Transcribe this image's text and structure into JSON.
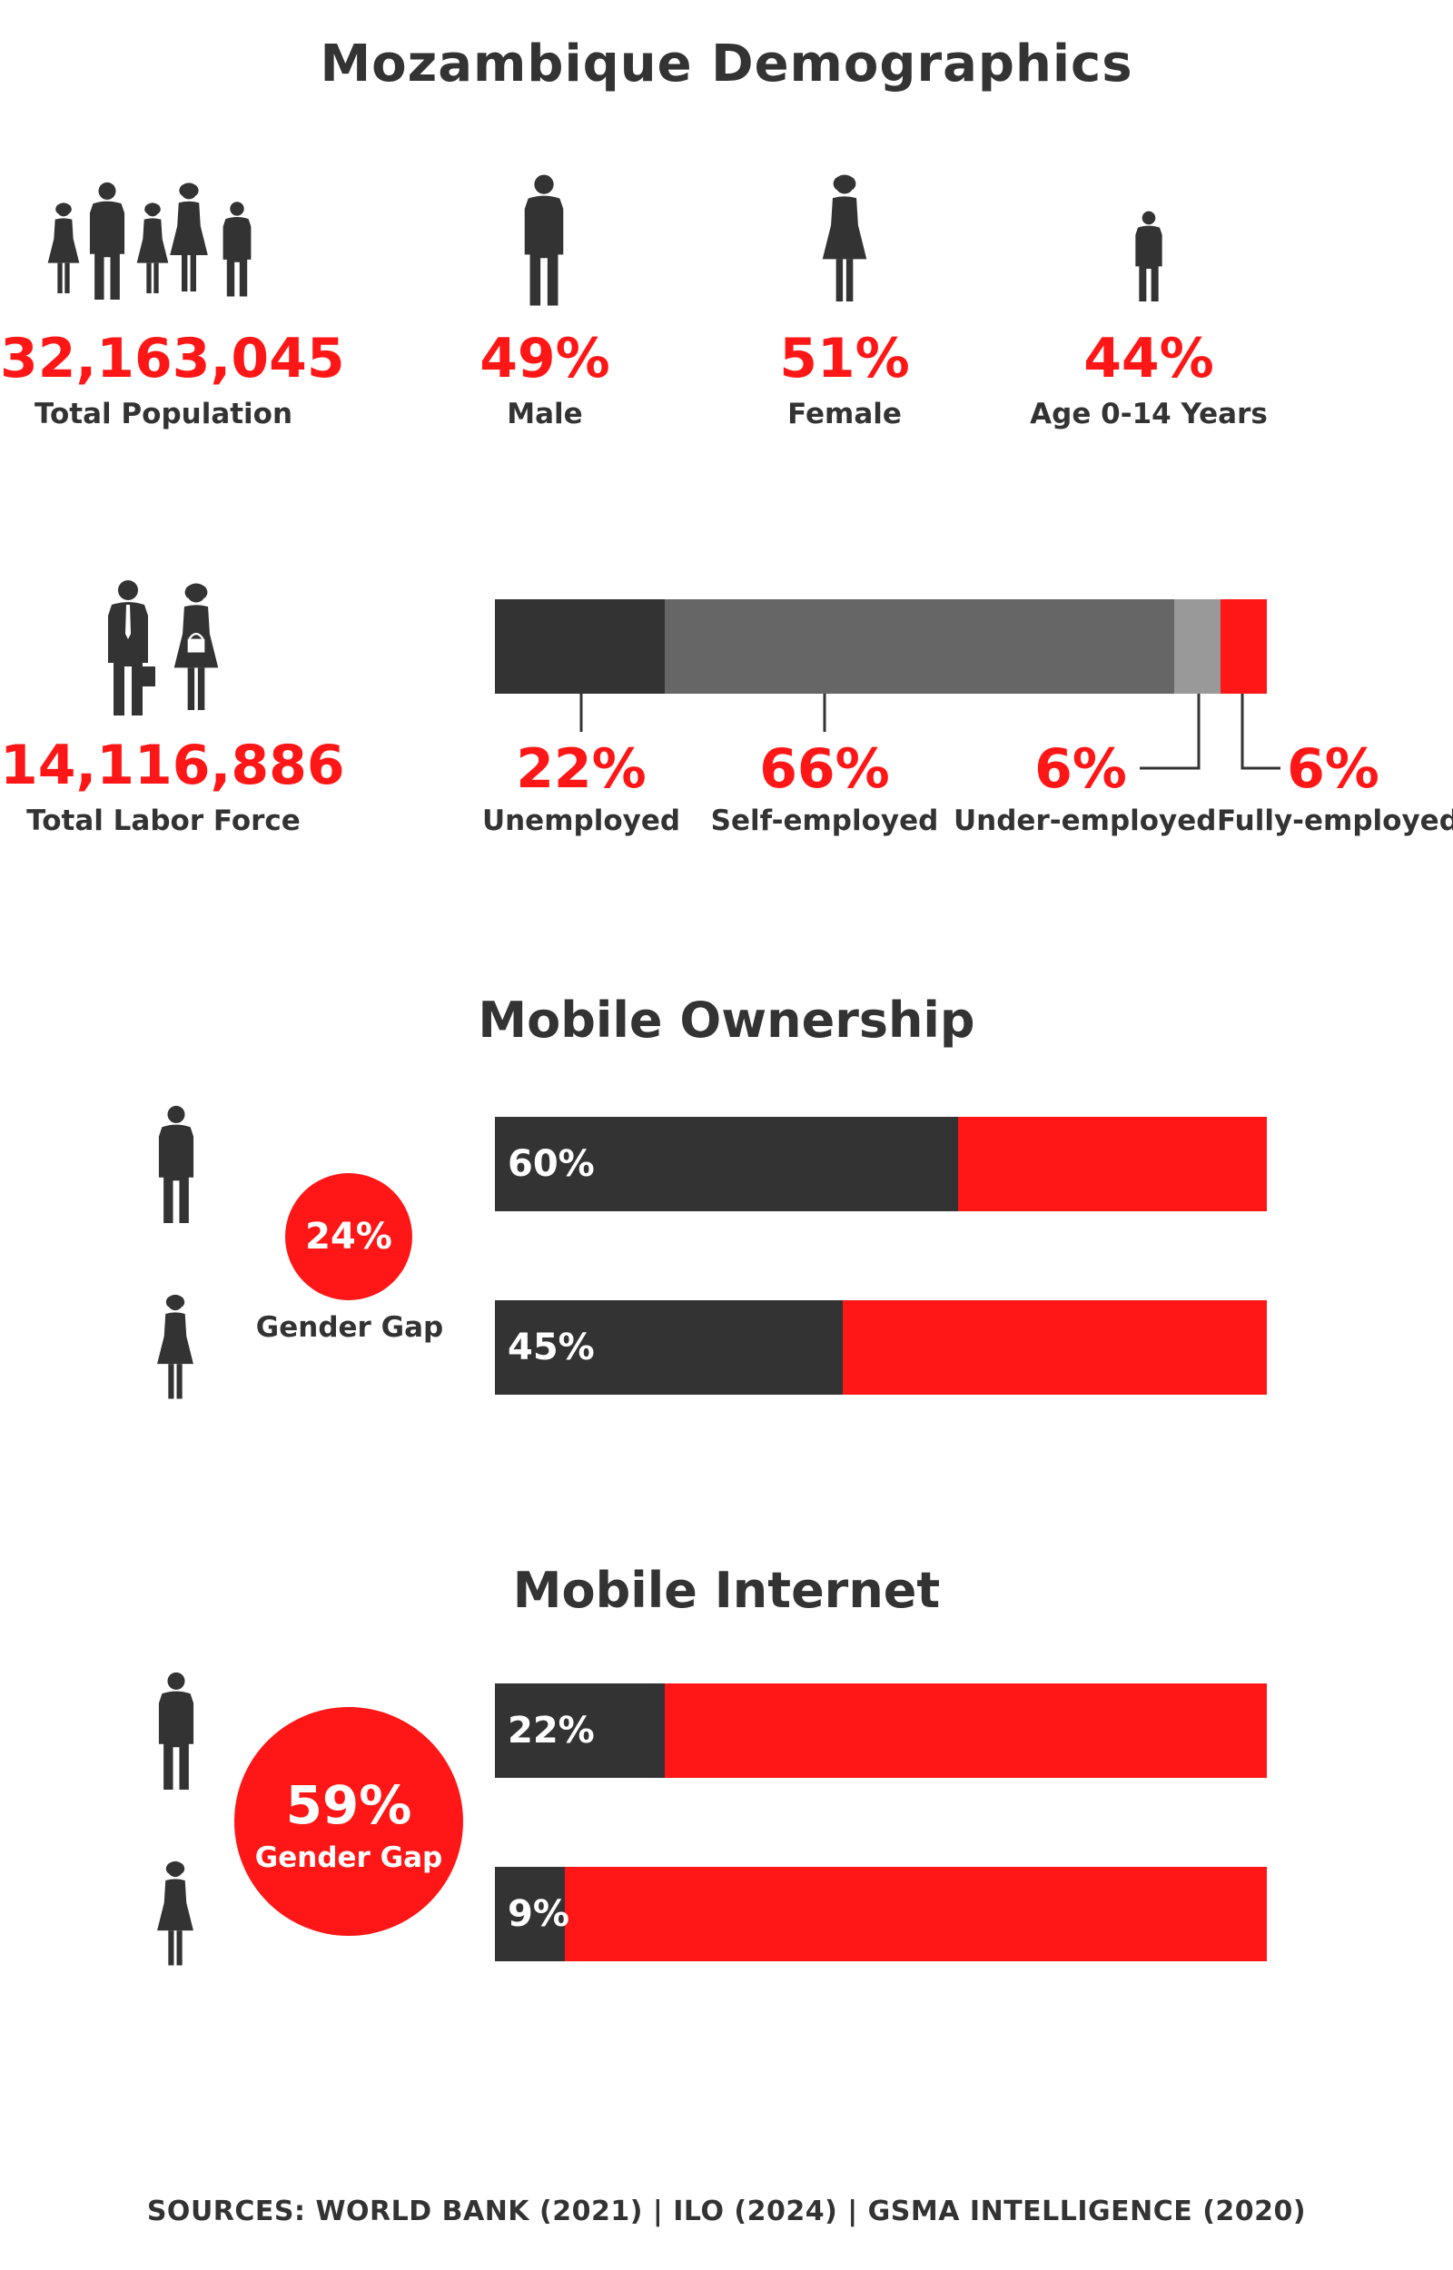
{
  "title": "Mozambique Demographics",
  "stats": [
    {
      "value": "32,163,045",
      "label": "Total Population"
    },
    {
      "value": "49%",
      "label": "Male"
    },
    {
      "value": "51%",
      "label": "Female"
    },
    {
      "value": "44%",
      "label": "Age 0-14 Years"
    }
  ],
  "labor": {
    "value": "14,116,886",
    "label": "Total Labor Force",
    "segments": [
      {
        "label": "Unemployed",
        "value_text": "22%"
      },
      {
        "label": "Self-employed",
        "value_text": "66%"
      },
      {
        "label": "Under-employed",
        "value_text": "6%"
      },
      {
        "label": "Fully-employed",
        "value_text": "6%"
      }
    ]
  },
  "ownership": {
    "title": "Mobile Ownership",
    "gap_value": "24%",
    "gap_label": "Gender Gap",
    "male_text": "60%",
    "female_text": "45%"
  },
  "internet": {
    "title": "Mobile Internet",
    "gap_value": "59%",
    "gap_label": "Gender Gap",
    "male_text": "22%",
    "female_text": "9%"
  },
  "sources": "SOURCES: WORLD BANK (2021) | ILO (2024) | GSMA INTELLIGENCE (2020)",
  "colors": {
    "accent": "#ff1717",
    "dark": "#333333",
    "mid": "#666666",
    "light": "#999999"
  },
  "icons": [
    "group-icon",
    "man-icon",
    "woman-icon",
    "child-icon",
    "businessman-icon",
    "businesswoman-icon"
  ],
  "chart_data": [
    {
      "type": "bar",
      "categories": [
        "Unemployed",
        "Self-employed",
        "Under-employed",
        "Fully-employed"
      ],
      "values": [
        22,
        66,
        6,
        6
      ],
      "stacked": true
    },
    {
      "type": "bar",
      "title": "Mobile Ownership",
      "categories": [
        "Male",
        "Female"
      ],
      "values": [
        60,
        45
      ],
      "xlim": [
        0,
        100
      ]
    },
    {
      "type": "bar",
      "title": "Mobile Internet",
      "categories": [
        "Male",
        "Female"
      ],
      "values": [
        22,
        9
      ],
      "xlim": [
        0,
        100
      ]
    }
  ]
}
